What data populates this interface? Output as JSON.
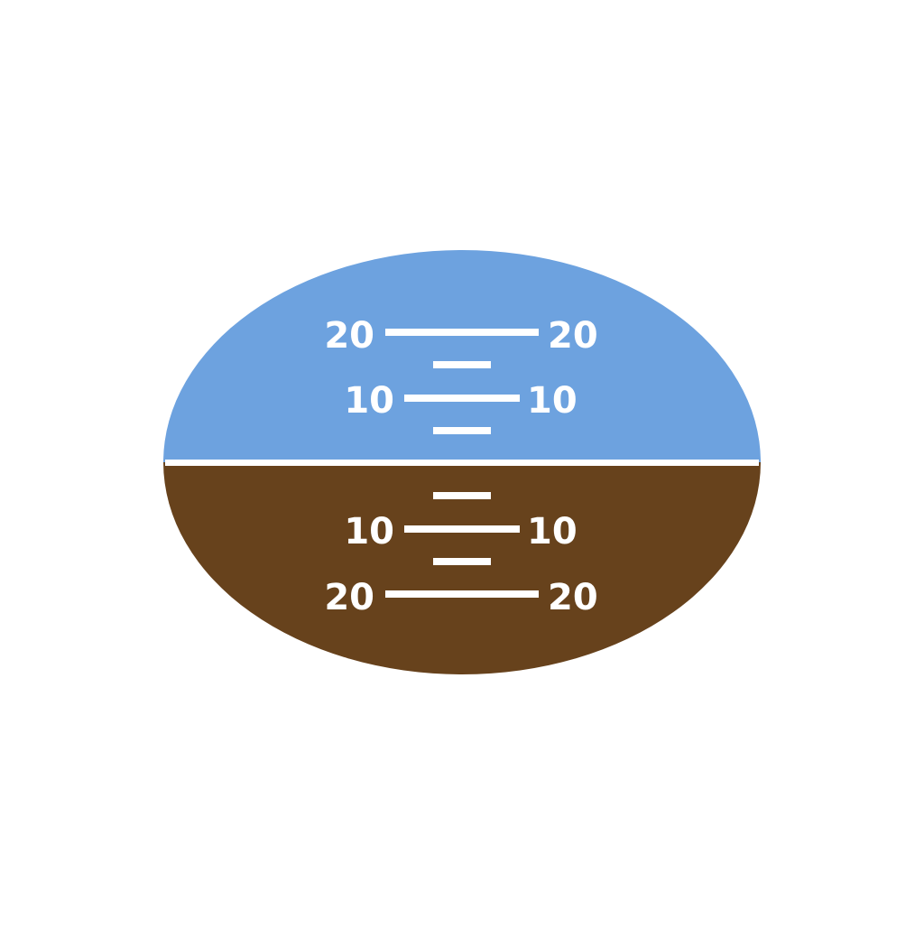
{
  "colors": {
    "sky": "#6DA2DF",
    "ground": "#67421C",
    "markings": "#FFFFFF",
    "background": "#FFFFFF"
  },
  "pitch_ladder": {
    "up_20": {
      "left": "20",
      "right": "20"
    },
    "up_10": {
      "left": "10",
      "right": "10"
    },
    "down_10": {
      "left": "10",
      "right": "10"
    },
    "down_20": {
      "left": "20",
      "right": "20"
    }
  }
}
